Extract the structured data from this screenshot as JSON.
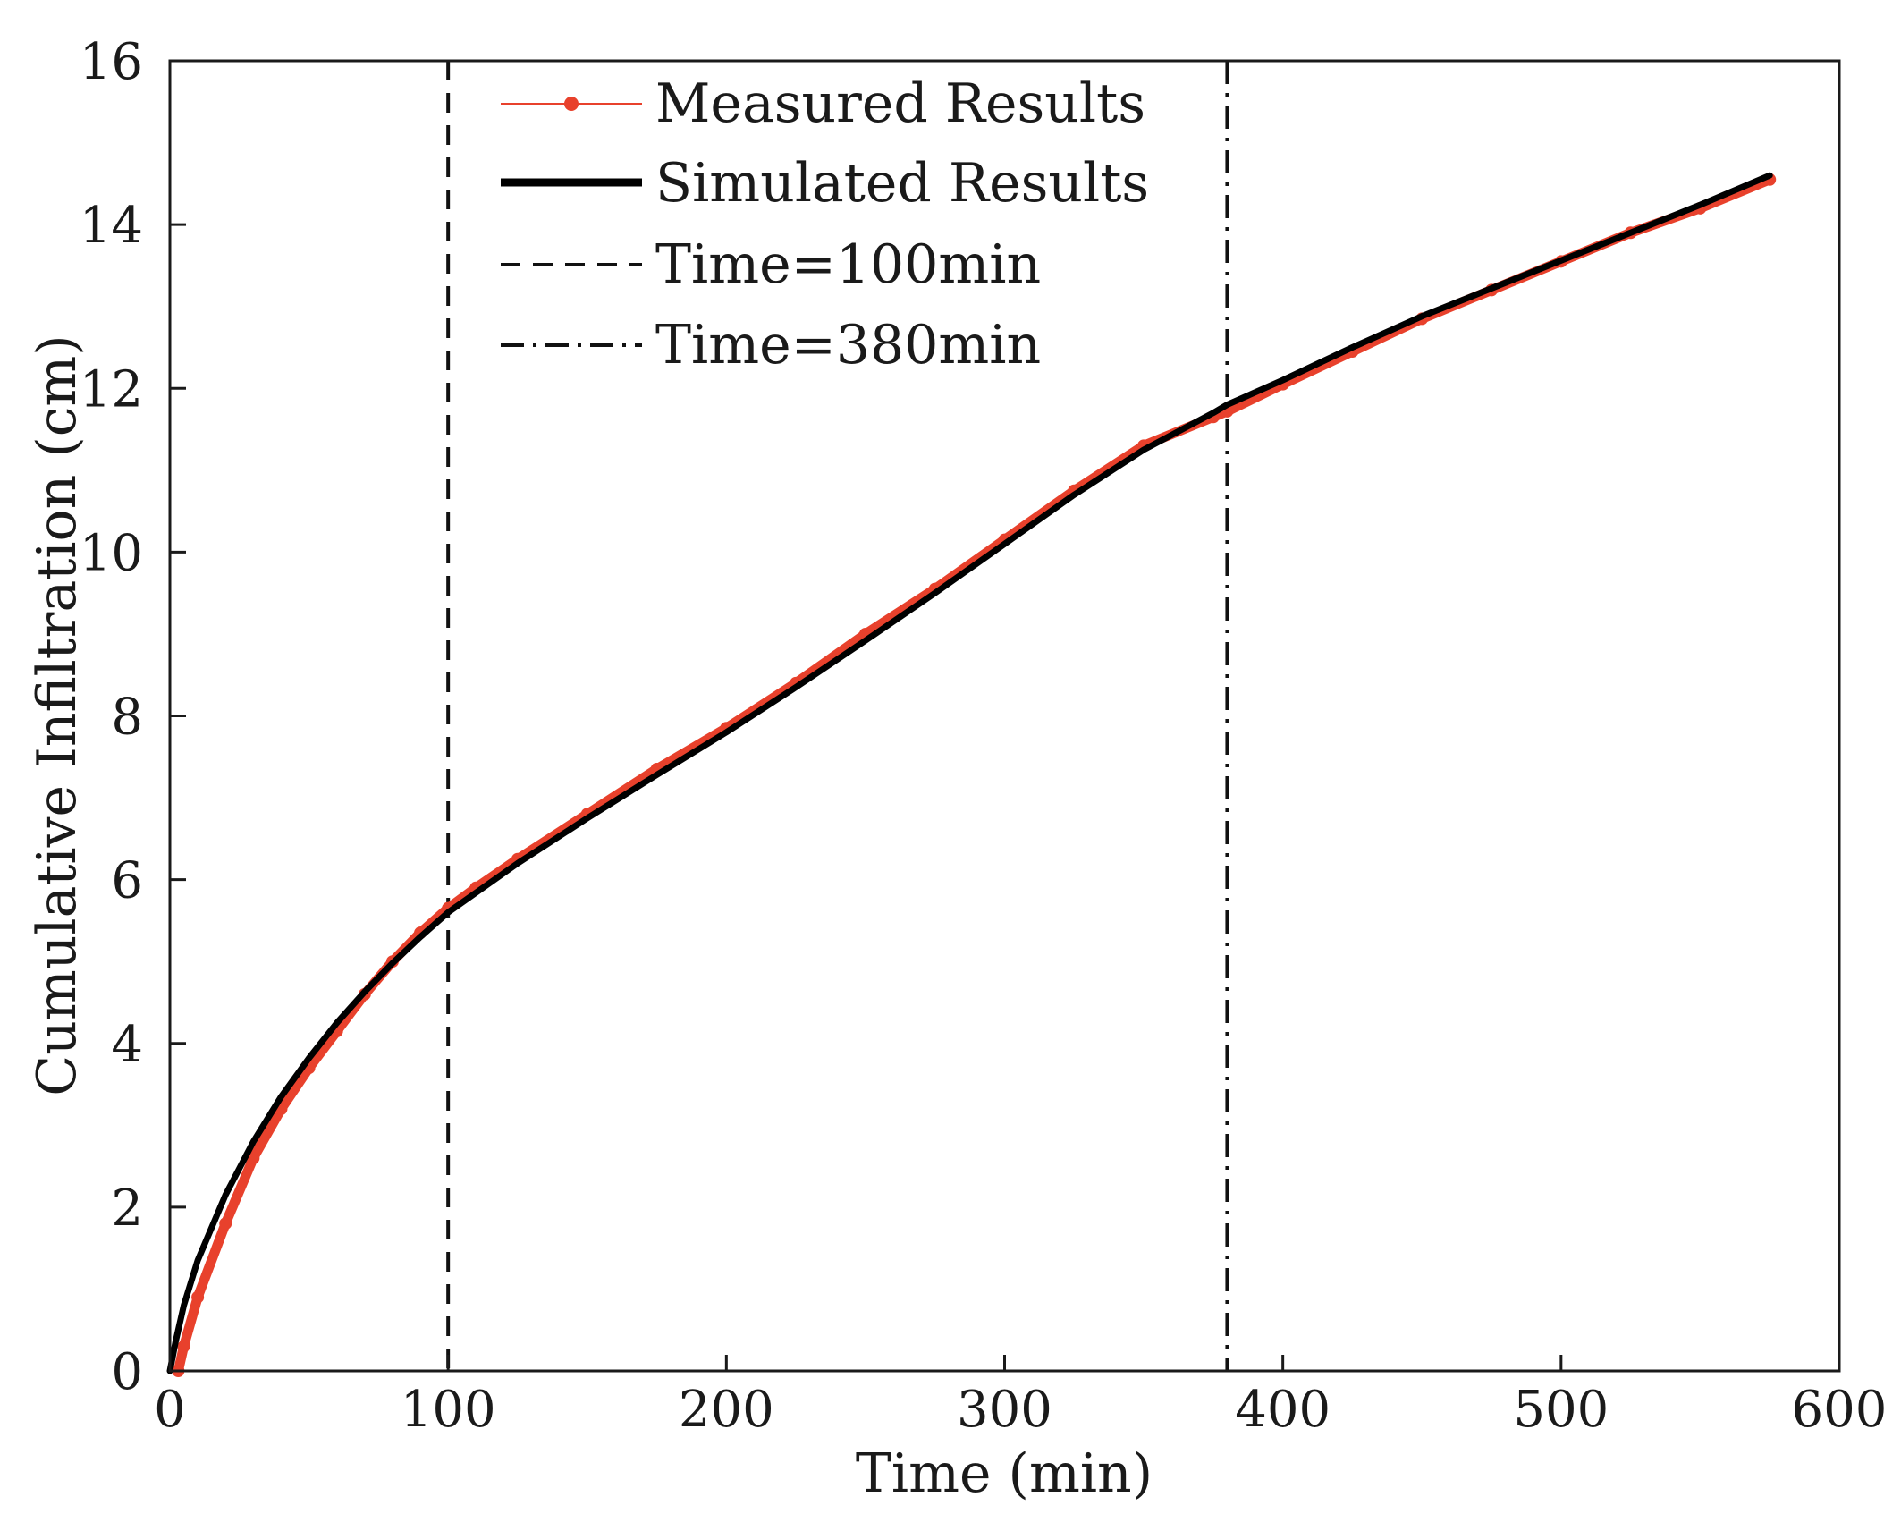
{
  "chart_data": {
    "type": "line",
    "xlabel": "Time (min)",
    "ylabel": "Cumulative Infiltration (cm)",
    "xlim": [
      0,
      600
    ],
    "ylim": [
      0,
      16
    ],
    "xticks": [
      0,
      100,
      200,
      300,
      400,
      500,
      600
    ],
    "yticks": [
      0,
      2,
      4,
      6,
      8,
      10,
      12,
      14,
      16
    ],
    "grid": false,
    "legend_position": "top-left",
    "colors": {
      "measured": "#e8412c",
      "simulated": "#000000",
      "axes": "#1a1a1a"
    },
    "series": [
      {
        "name": "Measured Results",
        "style": "thin line with dot markers",
        "x": [
          3,
          5,
          10,
          20,
          30,
          40,
          50,
          60,
          70,
          80,
          90,
          100,
          110,
          125,
          150,
          175,
          200,
          225,
          250,
          275,
          300,
          325,
          350,
          375,
          380,
          400,
          425,
          450,
          475,
          500,
          525,
          550,
          575
        ],
        "values": [
          0.0,
          0.3,
          0.9,
          1.8,
          2.6,
          3.2,
          3.7,
          4.15,
          4.6,
          5.0,
          5.35,
          5.65,
          5.9,
          6.25,
          6.8,
          7.35,
          7.85,
          8.4,
          9.0,
          9.55,
          10.15,
          10.75,
          11.3,
          11.65,
          11.72,
          12.05,
          12.45,
          12.85,
          13.2,
          13.55,
          13.9,
          14.2,
          14.55
        ]
      },
      {
        "name": "Simulated Results",
        "style": "thick solid line",
        "x": [
          0,
          2,
          5,
          10,
          20,
          30,
          40,
          50,
          60,
          70,
          80,
          90,
          100,
          125,
          150,
          175,
          200,
          225,
          250,
          275,
          300,
          325,
          350,
          375,
          380,
          400,
          425,
          450,
          475,
          500,
          525,
          550,
          575
        ],
        "values": [
          0.0,
          0.35,
          0.8,
          1.35,
          2.15,
          2.8,
          3.35,
          3.82,
          4.25,
          4.63,
          4.98,
          5.3,
          5.6,
          6.2,
          6.75,
          7.28,
          7.8,
          8.35,
          8.92,
          9.5,
          10.1,
          10.7,
          11.25,
          11.7,
          11.8,
          12.1,
          12.5,
          12.88,
          13.22,
          13.56,
          13.9,
          14.24,
          14.6
        ]
      }
    ],
    "reference_lines": [
      {
        "name": "Time=100min",
        "x": 100,
        "style": "dashed"
      },
      {
        "name": "Time=380min",
        "x": 380,
        "style": "dash-dot"
      }
    ]
  }
}
